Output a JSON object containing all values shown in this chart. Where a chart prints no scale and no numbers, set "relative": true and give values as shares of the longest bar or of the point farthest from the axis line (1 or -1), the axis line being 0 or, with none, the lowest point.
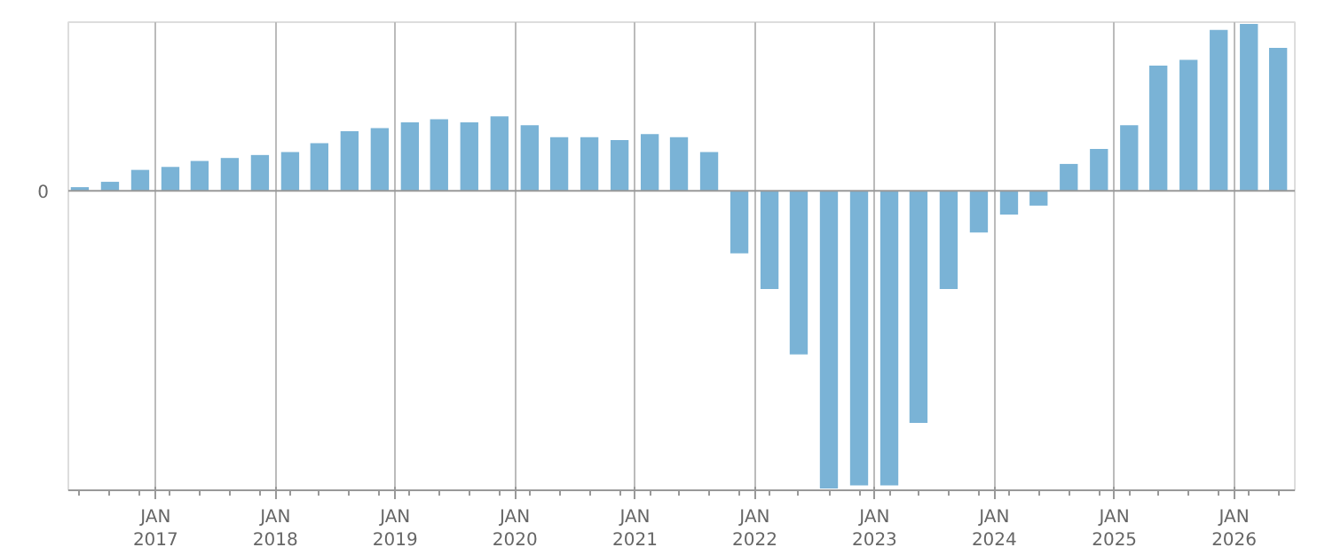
{
  "chart_data": {
    "type": "bar",
    "relative": true,
    "color": "#7ab3d6",
    "x": [
      "2016-05-15",
      "2016-08-15",
      "2016-11-15",
      "2017-02-15",
      "2017-05-15",
      "2017-08-15",
      "2017-11-15",
      "2018-02-15",
      "2018-05-15",
      "2018-08-15",
      "2018-11-15",
      "2019-02-15",
      "2019-05-15",
      "2019-08-15",
      "2019-11-15",
      "2020-02-15",
      "2020-05-15",
      "2020-08-15",
      "2020-11-15",
      "2021-02-15",
      "2021-05-15",
      "2021-08-15",
      "2021-11-15",
      "2022-02-15",
      "2022-05-15",
      "2022-08-15",
      "2022-11-15",
      "2023-02-15",
      "2023-05-15",
      "2023-08-15",
      "2023-11-15",
      "2024-02-15",
      "2024-05-15",
      "2024-08-15",
      "2024-11-15",
      "2025-02-15",
      "2025-05-15",
      "2025-08-15",
      "2025-11-15",
      "2026-02-15",
      "2026-05-15"
    ],
    "values": [
      0.012,
      0.03,
      0.07,
      0.08,
      0.1,
      0.11,
      0.12,
      0.13,
      0.16,
      0.2,
      0.21,
      0.23,
      0.24,
      0.23,
      0.25,
      0.22,
      0.18,
      0.18,
      0.17,
      0.19,
      0.18,
      0.13,
      -0.21,
      -0.33,
      -0.55,
      -1.0,
      -0.99,
      -0.99,
      -0.78,
      -0.33,
      -0.14,
      -0.08,
      -0.05,
      0.09,
      0.14,
      0.22,
      0.42,
      0.44,
      0.54,
      0.56,
      0.48
    ],
    "xlim": [
      "2016-04-10",
      "2026-07-05"
    ],
    "xticks": [
      {
        "value": "2017-01-01",
        "label": "JAN\n2017"
      },
      {
        "value": "2018-01-01",
        "label": "JAN\n2018"
      },
      {
        "value": "2019-01-01",
        "label": "JAN\n2019"
      },
      {
        "value": "2020-01-01",
        "label": "JAN\n2020"
      },
      {
        "value": "2021-01-01",
        "label": "JAN\n2021"
      },
      {
        "value": "2022-01-01",
        "label": "JAN\n2022"
      },
      {
        "value": "2023-01-01",
        "label": "JAN\n2023"
      },
      {
        "value": "2024-01-01",
        "label": "JAN\n2024"
      },
      {
        "value": "2025-01-01",
        "label": "JAN\n2025"
      },
      {
        "value": "2026-01-01",
        "label": "JAN\n2026"
      }
    ],
    "ref_lines": [
      {
        "axis": "y",
        "value": 0,
        "label": "0",
        "color": "#999999"
      }
    ],
    "grid": "x"
  }
}
